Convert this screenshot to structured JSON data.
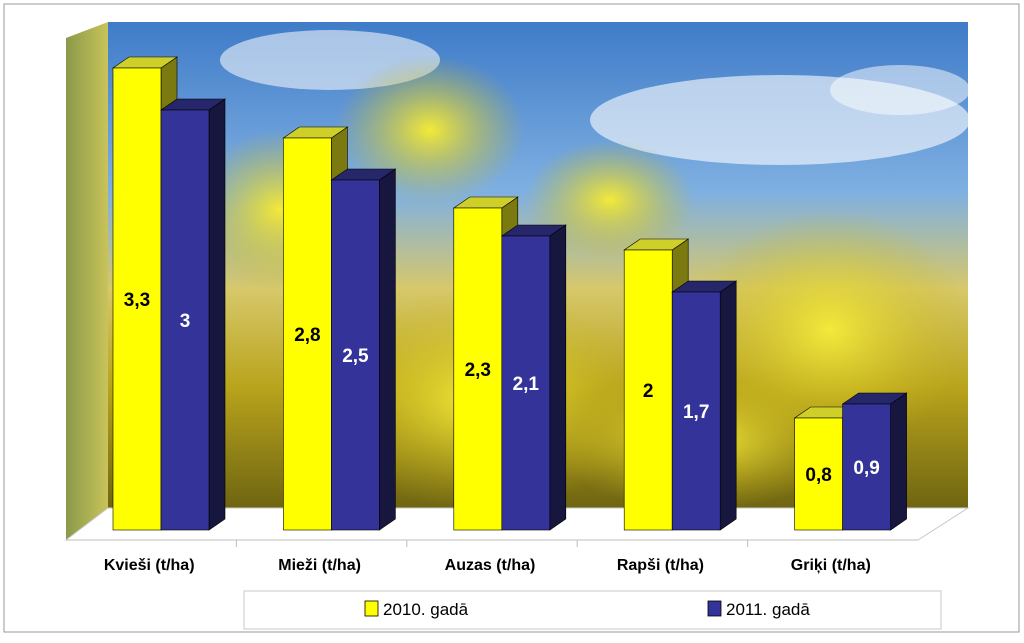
{
  "chart_data": {
    "type": "bar",
    "title": "",
    "xlabel": "",
    "ylabel": "",
    "ylim": [
      0,
      3.5
    ],
    "grid": false,
    "legend_position": "bottom",
    "categories": [
      "Kvieši (t/ha)",
      "Mieži (t/ha)",
      "Auzas (t/ha)",
      "Rapši (t/ha)",
      "Griķi (t/ha)"
    ],
    "series": [
      {
        "name": "2010. gadā",
        "values": [
          3.3,
          2.8,
          2.3,
          2.0,
          0.8
        ],
        "labels": [
          "3,3",
          "2,8",
          "2,3",
          "2",
          "0,8"
        ],
        "color": "#ffff00",
        "top_color": "#cfcf2a",
        "side_color": "#7a7a10",
        "label_color": "#000000"
      },
      {
        "name": "2011. gadā",
        "values": [
          3.0,
          2.5,
          2.1,
          1.7,
          0.9
        ],
        "labels": [
          "3",
          "2,5",
          "2,1",
          "1,7",
          "0,9"
        ],
        "color": "#333399",
        "top_color": "#26266b",
        "side_color": "#16163f",
        "label_color": "#ffffff"
      }
    ]
  }
}
